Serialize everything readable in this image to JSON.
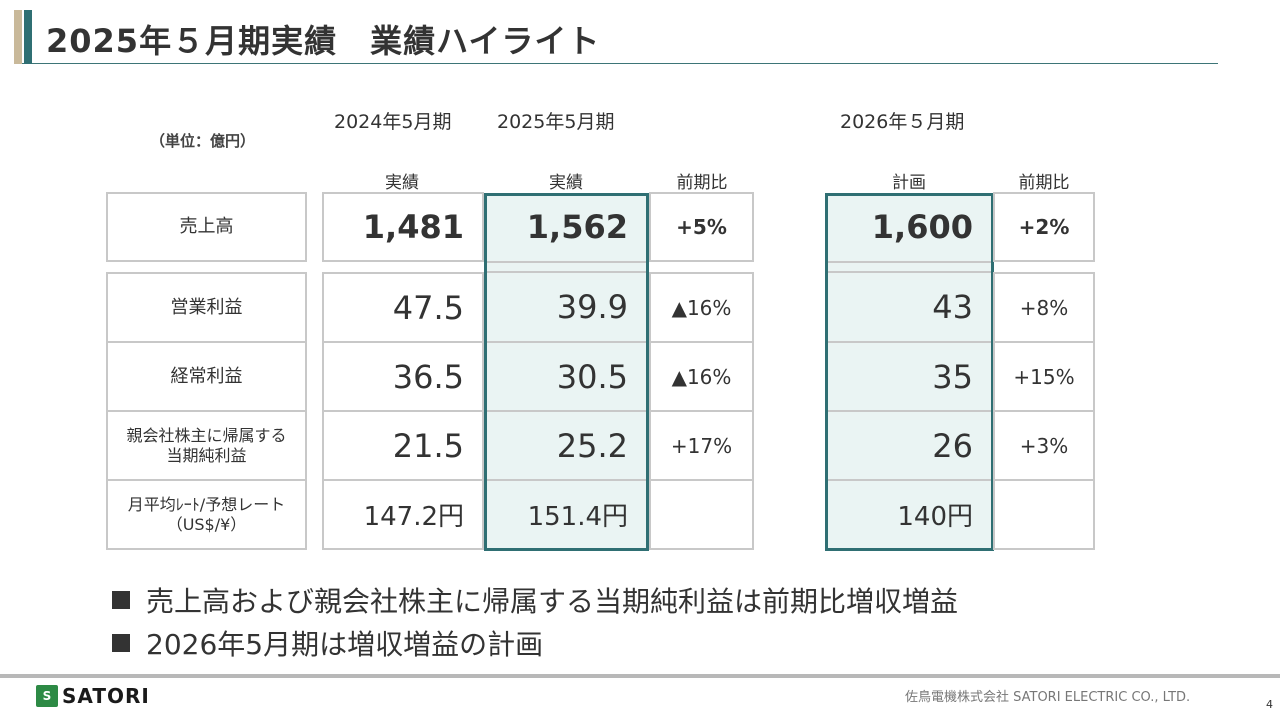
{
  "title": "2025年５月期実績　業績ハイライト",
  "unit": "（単位：億円）",
  "periods": {
    "fy2024": "2024年5月期",
    "fy2025": "2025年5月期",
    "fy2026": "2026年５月期"
  },
  "column_headers": {
    "actual_2024": "実績",
    "actual_2025": "実績",
    "yoy_2025": "前期比",
    "plan_2026": "計画",
    "yoy_2026": "前期比"
  },
  "rows": [
    {
      "label": "売上高",
      "fy2024": "1,481",
      "fy2025": "1,562",
      "yoy2025": "+5%",
      "plan2026": "1,600",
      "yoy2026": "+2%"
    },
    {
      "label": "営業利益",
      "fy2024": "47.5",
      "fy2025": "39.9",
      "yoy2025": "▲16%",
      "plan2026": "43",
      "yoy2026": "+8%"
    },
    {
      "label": "経常利益",
      "fy2024": "36.5",
      "fy2025": "30.5",
      "yoy2025": "▲16%",
      "plan2026": "35",
      "yoy2026": "+15%"
    },
    {
      "label_line1": "親会社株主に帰属する",
      "label_line2": "当期純利益",
      "fy2024": "21.5",
      "fy2025": "25.2",
      "yoy2025": "+17%",
      "plan2026": "26",
      "yoy2026": "+3%"
    },
    {
      "label_line1": "月平均ﾚｰﾄ/予想レート",
      "label_line2": "（US$/¥）",
      "fy2024": "147.2円",
      "fy2025": "151.4円",
      "yoy2025": "",
      "plan2026": "140円",
      "yoy2026": ""
    }
  ],
  "bullets": [
    "売上高および親会社株主に帰属する当期純利益は前期比増収増益",
    "2026年5月期は増収増益の計画"
  ],
  "footer": {
    "logo_text": "SATORI",
    "company": "佐鳥電機株式会社  SATORI ELECTRIC CO., LTD.",
    "page": "4"
  },
  "colors": {
    "accent": "#2f6f73",
    "highlight_fill": "#eaf4f3",
    "title_accent_gold": "#c9b99a",
    "logo_green": "#2d8a45"
  }
}
